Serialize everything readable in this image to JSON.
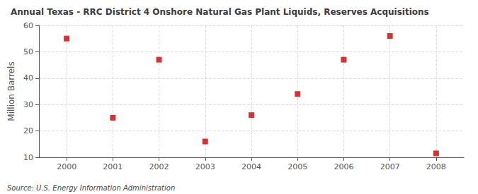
{
  "chart_data": {
    "type": "scatter",
    "title": "Annual Texas - RRC District 4 Onshore Natural Gas Plant Liquids, Reserves Acquisitions",
    "ylabel": "Million Barrels",
    "annotations": [
      "Source: U.S. Energy Information Administration"
    ],
    "x": [
      2000,
      2001,
      2002,
      2003,
      2004,
      2005,
      2006,
      2007,
      2008
    ],
    "values": [
      55.0,
      25.0,
      47.0,
      16.0,
      26.0,
      34.0,
      47.0,
      56.0,
      11.5
    ],
    "color": "#cc0000",
    "marker": "square",
    "xlim": [
      1999.4,
      2008.6
    ],
    "xticks": [
      2000,
      2001,
      2002,
      2003,
      2004,
      2005,
      2006,
      2007,
      2008
    ],
    "ylim": [
      10,
      60
    ],
    "yticks": [
      10,
      20,
      30,
      40,
      50,
      60
    ],
    "grid": true
  }
}
